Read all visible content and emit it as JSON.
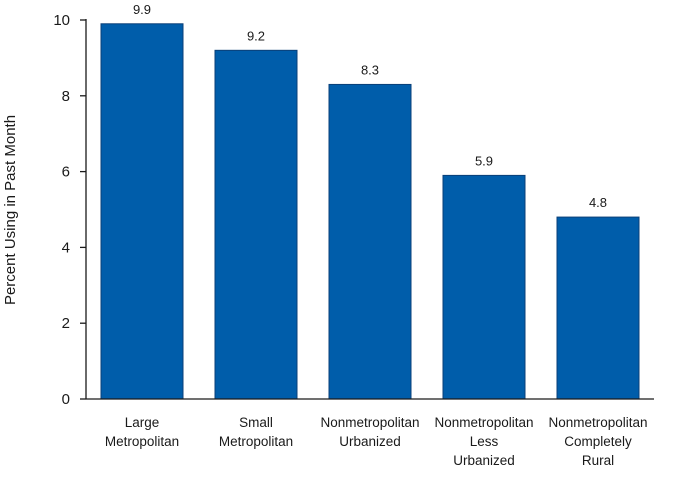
{
  "chart_data": {
    "type": "bar",
    "title": "",
    "xlabel": "",
    "ylabel": "Percent Using in Past Month",
    "ylim": [
      0,
      10
    ],
    "yticks": [
      0,
      2,
      4,
      6,
      8,
      10
    ],
    "grid": false,
    "categories": [
      [
        "Large",
        "Metropolitan"
      ],
      [
        "Small",
        "Metropolitan"
      ],
      [
        "Nonmetropolitan",
        "Urbanized"
      ],
      [
        "Nonmetropolitan",
        "Less",
        "Urbanized"
      ],
      [
        "Nonmetropolitan",
        "Completely",
        "Rural"
      ]
    ],
    "values": [
      9.9,
      9.2,
      8.3,
      5.9,
      4.8
    ],
    "data_labels": [
      "9.9",
      "9.2",
      "8.3",
      "5.9",
      "4.8"
    ],
    "bar_color": "#005DAA",
    "axis_color": "#1a1a1a"
  }
}
